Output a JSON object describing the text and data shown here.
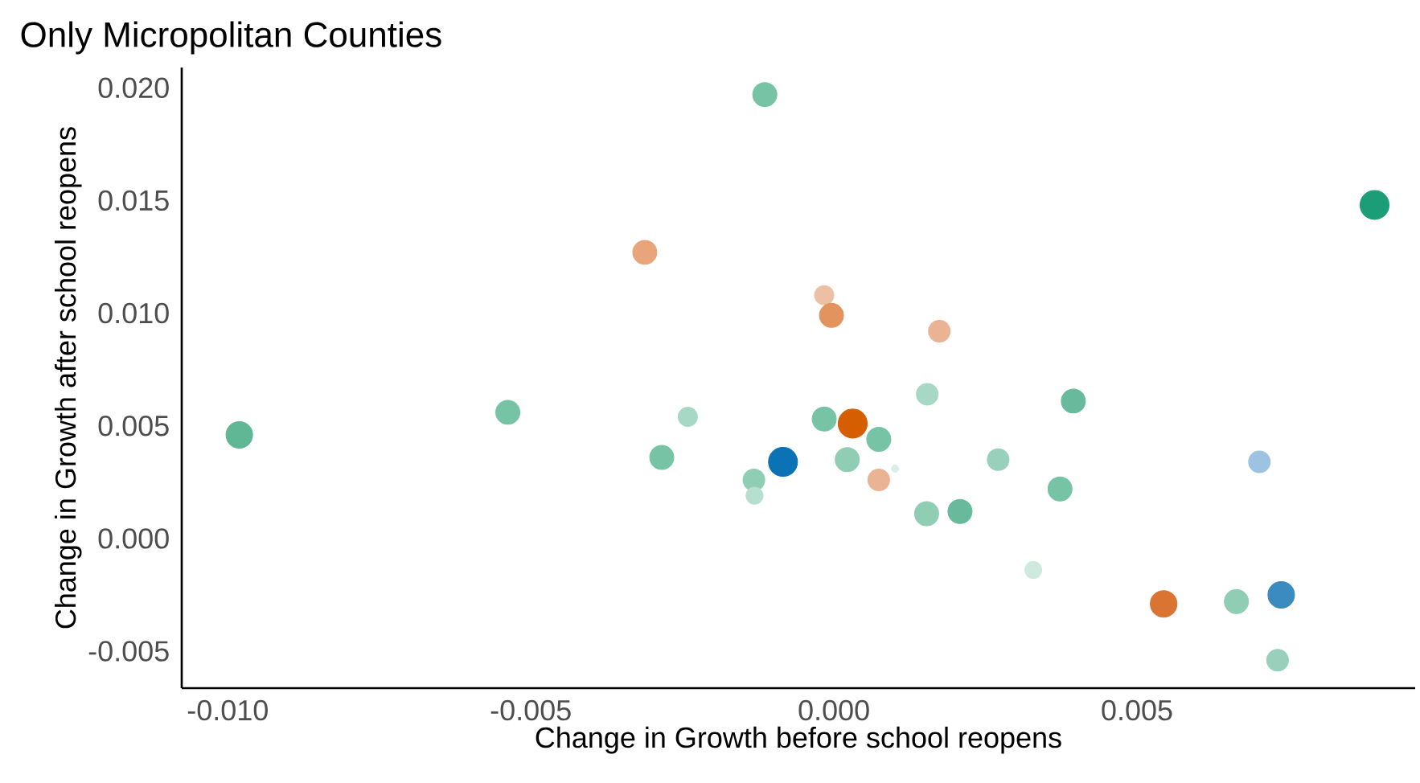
{
  "chart_data": {
    "type": "bubble",
    "title": "Only Micropolitan Counties",
    "xlabel": "Change in Growth before school reopens",
    "ylabel": "Change in Growth after school reopens",
    "x": [
      0.00892,
      -0.00114,
      -0.00312,
      -0.00981,
      -0.00538,
      -0.00241,
      -0.00284,
      -0.00132,
      -0.00131,
      -0.00084,
      -0.00016,
      -4e-05,
      0.00174,
      0.00154,
      0.00395,
      -0.00016,
      0.00074,
      0.00022,
      0.00074,
      0.00101,
      0.00271,
      0.00373,
      0.00153,
      0.00208,
      0.00702,
      0.00329,
      0.00544,
      0.00664,
      0.00738,
      0.00732,
      0.00031
    ],
    "values": [
      0.0148,
      0.0197,
      0.0127,
      0.0046,
      0.0056,
      0.0054,
      0.0036,
      0.0026,
      0.0019,
      0.0034,
      0.0108,
      0.0099,
      0.0092,
      0.0064,
      0.0061,
      0.0053,
      0.0044,
      0.0035,
      0.0026,
      0.0031,
      0.0035,
      0.0022,
      0.0011,
      0.0012,
      0.0034,
      -0.0014,
      -0.0029,
      -0.0028,
      -0.0025,
      -0.0054,
      0.0051
    ],
    "sizes": [
      1,
      0.69,
      0.69,
      0.84,
      0.69,
      0.44,
      0.69,
      0.56,
      0.34,
      1,
      0.44,
      0.69,
      0.56,
      0.56,
      0.69,
      0.69,
      0.69,
      0.69,
      0.56,
      0.06,
      0.56,
      0.69,
      0.69,
      0.69,
      0.56,
      0.34,
      0.84,
      0.69,
      0.84,
      0.56,
      1
    ],
    "colors": [
      "#1b9e77",
      "#76c3a6",
      "#e8a47a",
      "#5fb795",
      "#76c3a6",
      "#a6d8c5",
      "#76c3a6",
      "#8fcdb5",
      "#b6dfcf",
      "#0a72b5",
      "#eec0a3",
      "#e3935e",
      "#eab394",
      "#a6d8c5",
      "#67ba9b",
      "#76c3a6",
      "#76c3a6",
      "#8fcdb5",
      "#eab394",
      "#d9efe6",
      "#98d0bb",
      "#76c3a6",
      "#8fcdb5",
      "#67ba9b",
      "#9dc3e2",
      "#cfe9df",
      "#da7433",
      "#8fcdb5",
      "#3b8ac0",
      "#98d0bb",
      "#d55e00"
    ],
    "xlim": [
      -0.01076,
      0.00959
    ],
    "ylim": [
      -0.00664,
      0.0209
    ],
    "xticks": [
      {
        "value": -0.01,
        "label": "-0.010"
      },
      {
        "value": -0.005,
        "label": "-0.005"
      },
      {
        "value": 0,
        "label": "0.000"
      },
      {
        "value": 0.005,
        "label": "0.005"
      }
    ],
    "yticks": [
      {
        "value": -0.005,
        "label": "-0.005"
      },
      {
        "value": 0,
        "label": "0.000"
      },
      {
        "value": 0.005,
        "label": "0.005"
      },
      {
        "value": 0.01,
        "label": "0.010"
      },
      {
        "value": 0.015,
        "label": "0.015"
      },
      {
        "value": 0.02,
        "label": "0.020"
      }
    ]
  }
}
